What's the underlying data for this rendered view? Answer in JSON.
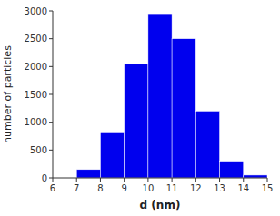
{
  "chart_data": {
    "type": "histogram",
    "bins": [
      6,
      7,
      8,
      9,
      10,
      11,
      12,
      13,
      14,
      15
    ],
    "values": [
      0,
      150,
      825,
      2050,
      2950,
      2500,
      1200,
      300,
      50
    ],
    "color": "#0000EE",
    "xlabel": "d (nm)",
    "ylabel": "number of particles",
    "xlim": [
      6,
      15
    ],
    "ylim": [
      0,
      3000
    ],
    "xticks": [
      6,
      7,
      8,
      9,
      10,
      11,
      12,
      13,
      14,
      15
    ],
    "yticks": [
      0,
      500,
      1000,
      1500,
      2000,
      2500,
      3000
    ],
    "grid": false
  }
}
